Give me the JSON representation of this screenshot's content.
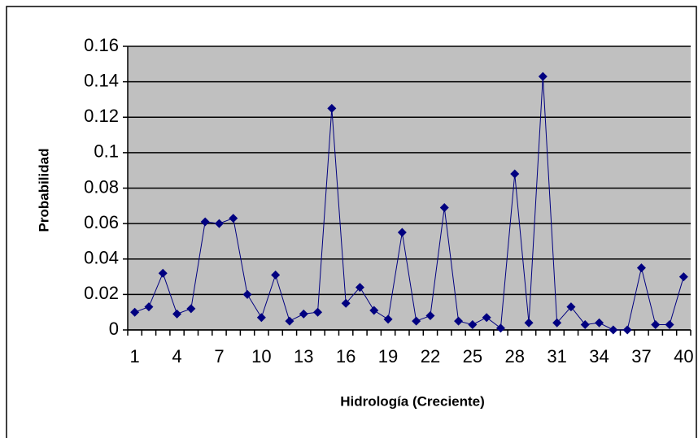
{
  "chart_data": {
    "type": "line",
    "x_label": "Hidrología (Creciente)",
    "y_label": "Probabilidad",
    "categories": [
      1,
      null,
      null,
      4,
      null,
      null,
      7,
      null,
      null,
      10,
      null,
      null,
      13,
      null,
      null,
      16,
      null,
      null,
      19,
      null,
      null,
      22,
      null,
      null,
      25,
      null,
      null,
      28,
      null,
      null,
      31,
      null,
      null,
      34,
      null,
      null,
      37,
      null,
      null,
      40
    ],
    "values": [
      0.01,
      0.013,
      0.032,
      0.009,
      0.012,
      0.061,
      0.06,
      0.063,
      0.02,
      0.007,
      0.031,
      0.005,
      0.009,
      0.01,
      0.125,
      0.015,
      0.024,
      0.011,
      0.006,
      0.055,
      0.005,
      0.008,
      0.069,
      0.005,
      0.003,
      0.007,
      0.001,
      0.088,
      0.004,
      0.143,
      0.004,
      0.013,
      0.003,
      0.004,
      0,
      0,
      0.035,
      0.003,
      0.003,
      0.03
    ],
    "color": "#000080",
    "ylim": [
      0,
      0.16
    ],
    "yticks": [
      0,
      0.02,
      0.04,
      0.06,
      0.08,
      0.1,
      0.12,
      0.14,
      0.16
    ],
    "grid": true,
    "marker": "diamond"
  }
}
